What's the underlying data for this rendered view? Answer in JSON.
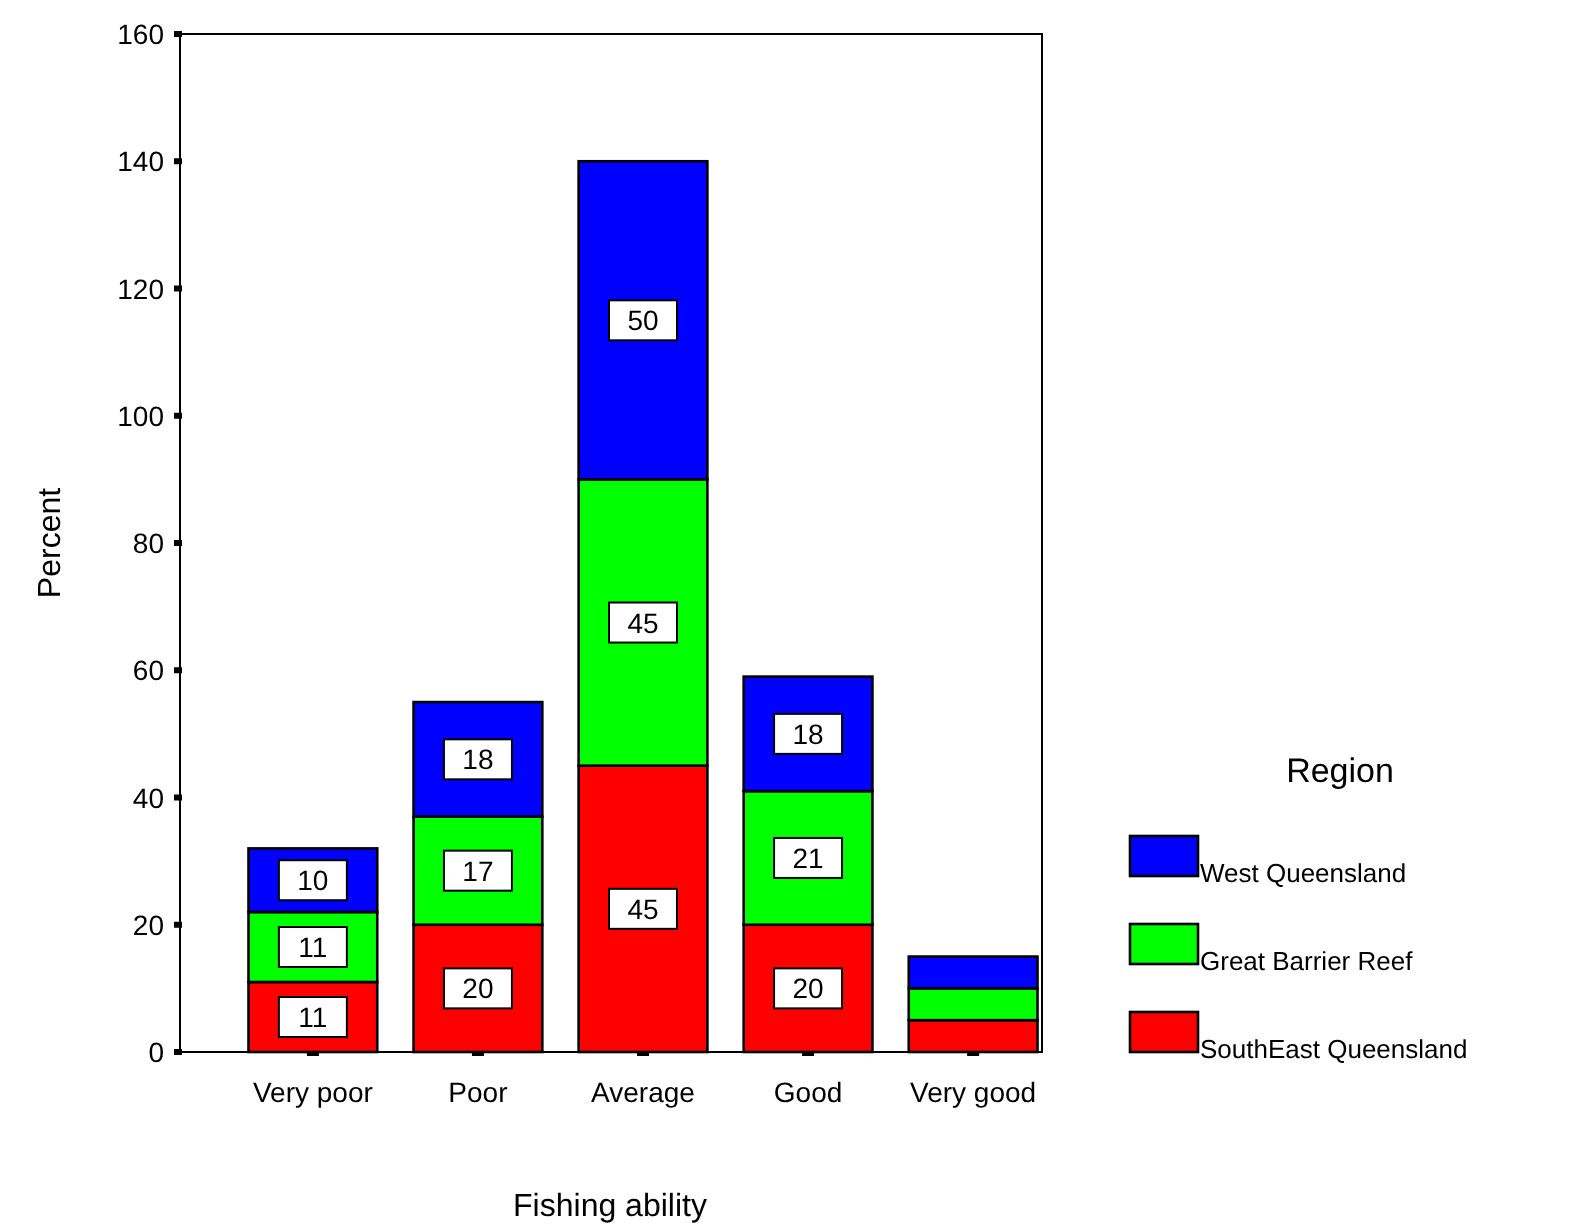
{
  "chart_data": {
    "type": "bar",
    "stacked": true,
    "xlabel": "Fishing ability",
    "ylabel": "Percent",
    "legend_title": "Region",
    "legend": "right",
    "categories": [
      "Very poor",
      "Poor",
      "Average",
      "Good",
      "Very good"
    ],
    "ylim": [
      0,
      160
    ],
    "yticks": [
      0,
      20,
      40,
      60,
      80,
      100,
      120,
      140,
      160
    ],
    "series": [
      {
        "name": "SouthEast Queensland",
        "color": "#ff0000",
        "values": [
          11,
          20,
          45,
          20,
          5
        ],
        "value_labels": [
          "11",
          "20",
          "45",
          "20",
          null
        ]
      },
      {
        "name": "Great Barrier Reef",
        "color": "#00ff00",
        "values": [
          11,
          17,
          45,
          21,
          5
        ],
        "value_labels": [
          "11",
          "17",
          "45",
          "21",
          null
        ]
      },
      {
        "name": "West Queensland",
        "color": "#0000ff",
        "values": [
          10,
          18,
          50,
          18,
          5
        ],
        "value_labels": [
          "10",
          "18",
          "50",
          "18",
          null
        ]
      }
    ]
  }
}
